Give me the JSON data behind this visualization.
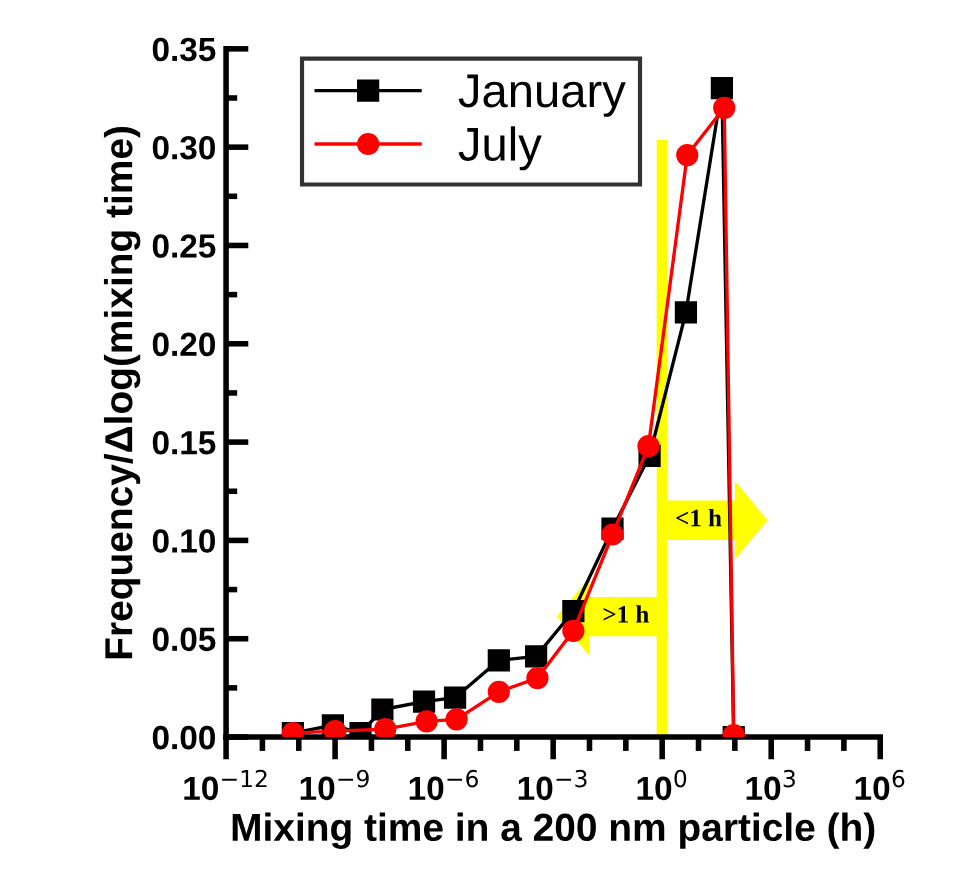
{
  "chart_data": {
    "type": "line",
    "xlabel": "Mixing time in a 200 nm particle (h)",
    "ylabel": "Frequency/Δlog(mixing time)",
    "log": "x",
    "xlim": [
      1e-12,
      1000000.0
    ],
    "ylim": [
      0,
      0.35
    ],
    "xticks": [
      {
        "value": 1e-12,
        "label": "10$^{−12}$"
      },
      {
        "value": 1e-09,
        "label": "10$^{−9}$"
      },
      {
        "value": 1e-06,
        "label": "10$^{−6}$"
      },
      {
        "value": 0.001,
        "label": "10$^{−3}$"
      },
      {
        "value": 1,
        "label": "10$^{0}$"
      },
      {
        "value": 1000,
        "label": "10$^{3}$"
      },
      {
        "value": 1000000,
        "label": "10$^{6}$"
      }
    ],
    "yticks": [
      {
        "value": 0,
        "label": "0.00"
      },
      {
        "value": 0.05,
        "label": "0.05"
      },
      {
        "value": 0.1,
        "label": "0.10"
      },
      {
        "value": 0.15,
        "label": "0.15"
      },
      {
        "value": 0.2,
        "label": "0.20"
      },
      {
        "value": 0.25,
        "label": "0.25"
      },
      {
        "value": 0.3,
        "label": "0.30"
      },
      {
        "value": 0.35,
        "label": "0.35"
      }
    ],
    "legend": "top left",
    "grid": false,
    "series": [
      {
        "name": "January",
        "color": "#000000",
        "marker": "square",
        "x": [
          6.9e-11,
          8.7e-10,
          5e-09,
          2e-08,
          2.8e-07,
          2e-06,
          3.2e-05,
          0.00034,
          0.0036,
          0.043,
          0.45,
          4.5,
          44,
          93
        ],
        "values": [
          0.002,
          0.006,
          0.002,
          0.014,
          0.018,
          0.02,
          0.039,
          0.041,
          0.064,
          0.106,
          0.143,
          0.216,
          0.33,
          0
        ]
      },
      {
        "name": "July",
        "color": "#ff0000",
        "marker": "circle",
        "x": [
          6.9e-11,
          1e-09,
          2.4e-08,
          3.3e-07,
          2.2e-06,
          3.2e-05,
          0.00037,
          0.0036,
          0.043,
          0.42,
          4.9,
          51,
          93
        ],
        "values": [
          0.002,
          0.003,
          0.004,
          0.008,
          0.009,
          0.023,
          0.03,
          0.054,
          0.103,
          0.148,
          0.296,
          0.32,
          0.001
        ]
      }
    ],
    "ref_lines": [
      {
        "axis": "x",
        "value": 1,
        "label": null,
        "color": "#ffff00"
      }
    ],
    "annotations": [
      ">1 h",
      "<1 h"
    ]
  }
}
